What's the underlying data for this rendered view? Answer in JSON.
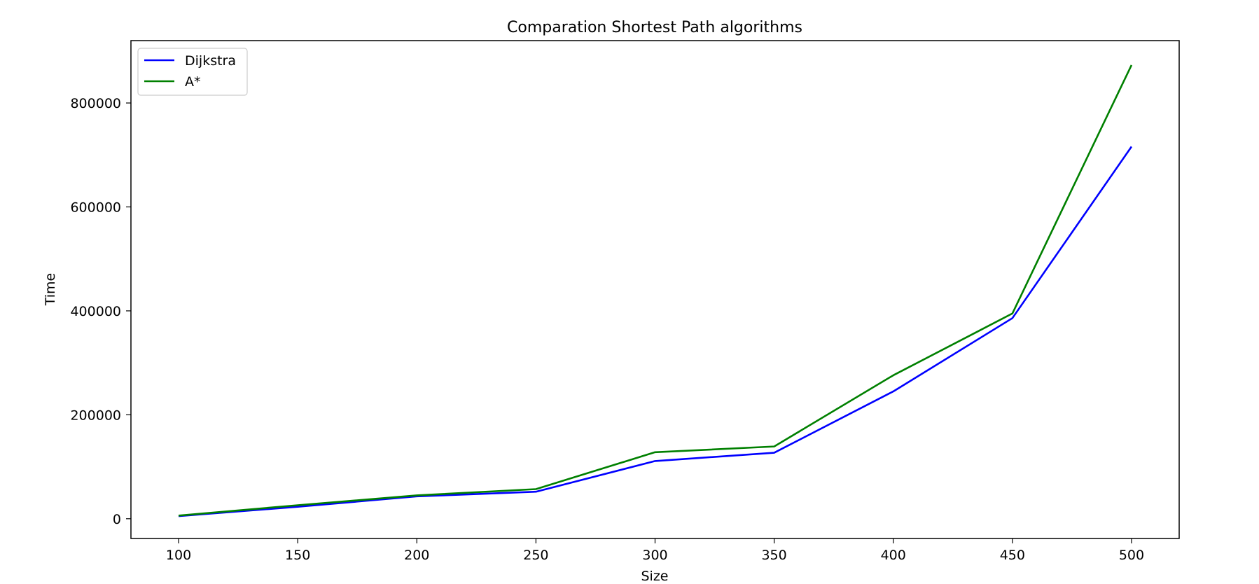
{
  "chart_data": {
    "type": "line",
    "title": "Comparation Shortest Path algorithms",
    "xlabel": "Size",
    "ylabel": "Time",
    "x": [
      100,
      150,
      200,
      250,
      300,
      350,
      400,
      450,
      500
    ],
    "xticks": [
      "100",
      "150",
      "200",
      "250",
      "300",
      "350",
      "400",
      "450",
      "500"
    ],
    "yticks": [
      "0",
      "200000",
      "400000",
      "600000",
      "800000"
    ],
    "xlim": [
      80,
      520
    ],
    "ylim": [
      -38000,
      920000
    ],
    "grid": false,
    "legend_position": "upper-left",
    "series": [
      {
        "name": "Dijkstra",
        "color": "#0000ff",
        "values": [
          5000,
          23000,
          43000,
          52000,
          111000,
          127000,
          245000,
          386000,
          716000
        ]
      },
      {
        "name": "A*",
        "color": "#008000",
        "values": [
          6000,
          26000,
          45000,
          57000,
          128000,
          139000,
          276000,
          395000,
          873000
        ]
      }
    ]
  }
}
